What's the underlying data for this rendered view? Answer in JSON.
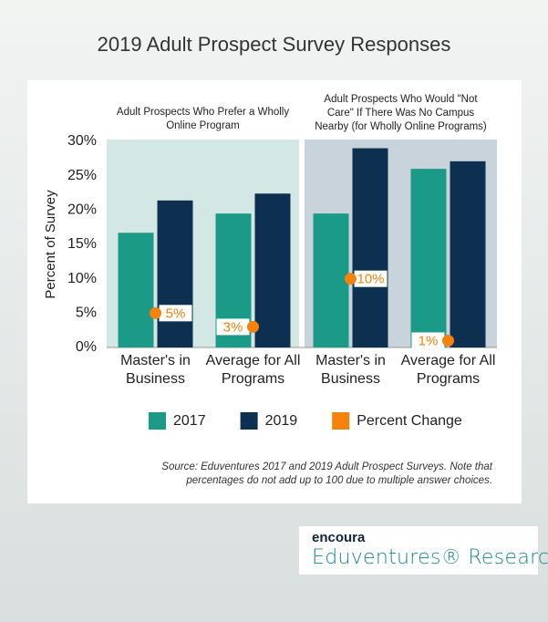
{
  "chart_data": {
    "type": "bar",
    "title": "2019 Adult Prospect Survey Responses",
    "y_label": "Percent of Survey",
    "ylim": [
      0,
      30
    ],
    "yticks": [
      {
        "value": 0,
        "label": "0%"
      },
      {
        "value": 5,
        "label": "5%"
      },
      {
        "value": 10,
        "label": "10%"
      },
      {
        "value": 15,
        "label": "15%"
      },
      {
        "value": 20,
        "label": "20%"
      },
      {
        "value": 25,
        "label": "25%"
      },
      {
        "value": 30,
        "label": "30%"
      }
    ],
    "categories": [
      "Master's in Business",
      "Average for All Programs",
      "Master's in Business",
      "Average for All Programs"
    ],
    "panels": [
      {
        "title": "Adult Prospects Who Prefer a Wholly Online Program",
        "color": "#d3e8e5"
      },
      {
        "title": "Adult Prospects Who Would \"Not Care\" If There Was No Campus Nearby (for Wholly Online Programs)",
        "color": "#c9d3dc"
      }
    ],
    "series": [
      {
        "name": "2017",
        "color": "#1c9a88",
        "values": [
          16.7,
          19.5,
          19.5,
          26.0
        ]
      },
      {
        "name": "2019",
        "color": "#0d3050",
        "values": [
          21.4,
          22.4,
          29.0,
          27.1
        ]
      },
      {
        "name": "Percent Change",
        "type": "scatter",
        "color": "#f5820d",
        "values": [
          5,
          3,
          10,
          1
        ],
        "value_labels": [
          "5%",
          "3%",
          "10%",
          "1%"
        ]
      }
    ],
    "source": "Source: Eduventures 2017 and 2019 Adult Prospect Surveys. Note that percentages do not add up to 100 due to multiple answer choices."
  },
  "logo": {
    "brand": "encoura",
    "product": "Eduventures® Research"
  }
}
